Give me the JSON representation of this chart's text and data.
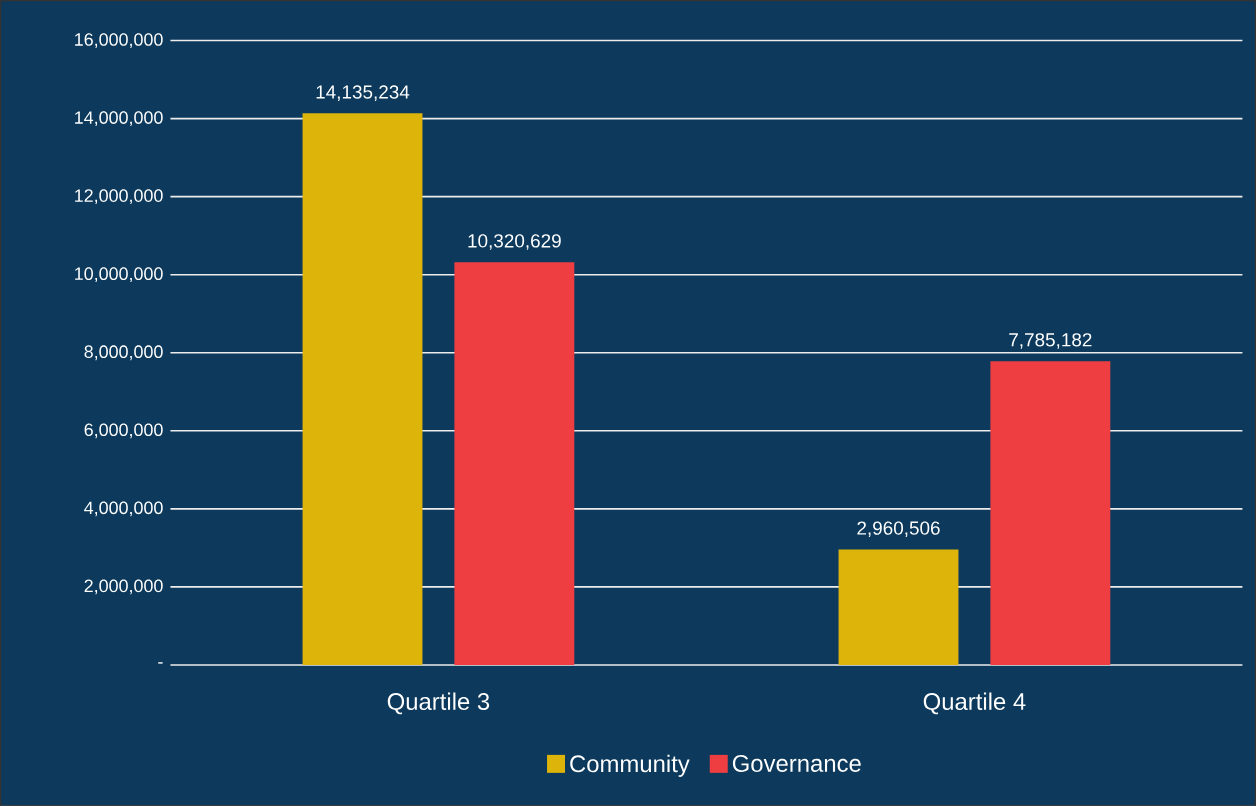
{
  "chart_data": {
    "type": "bar",
    "categories": [
      "Quartile 3",
      "Quartile 4"
    ],
    "series": [
      {
        "name": "Community",
        "color": "#ddb40a",
        "values": [
          14135234,
          2960506
        ],
        "value_labels": [
          "14,135,234",
          "2,960,506"
        ]
      },
      {
        "name": "Governance",
        "color": "#ef3e42",
        "values": [
          10320629,
          7785182
        ],
        "value_labels": [
          "10,320,629",
          "7,785,182"
        ]
      }
    ],
    "ylim": [
      0,
      16000000
    ],
    "yticks": [
      {
        "value": 0,
        "label": "-"
      },
      {
        "value": 2000000,
        "label": "2,000,000"
      },
      {
        "value": 4000000,
        "label": "4,000,000"
      },
      {
        "value": 6000000,
        "label": "6,000,000"
      },
      {
        "value": 8000000,
        "label": "8,000,000"
      },
      {
        "value": 10000000,
        "label": "10,000,000"
      },
      {
        "value": 12000000,
        "label": "12,000,000"
      },
      {
        "value": 14000000,
        "label": "14,000,000"
      },
      {
        "value": 16000000,
        "label": "16,000,000"
      }
    ],
    "grid": "y",
    "legend": "bottom"
  }
}
